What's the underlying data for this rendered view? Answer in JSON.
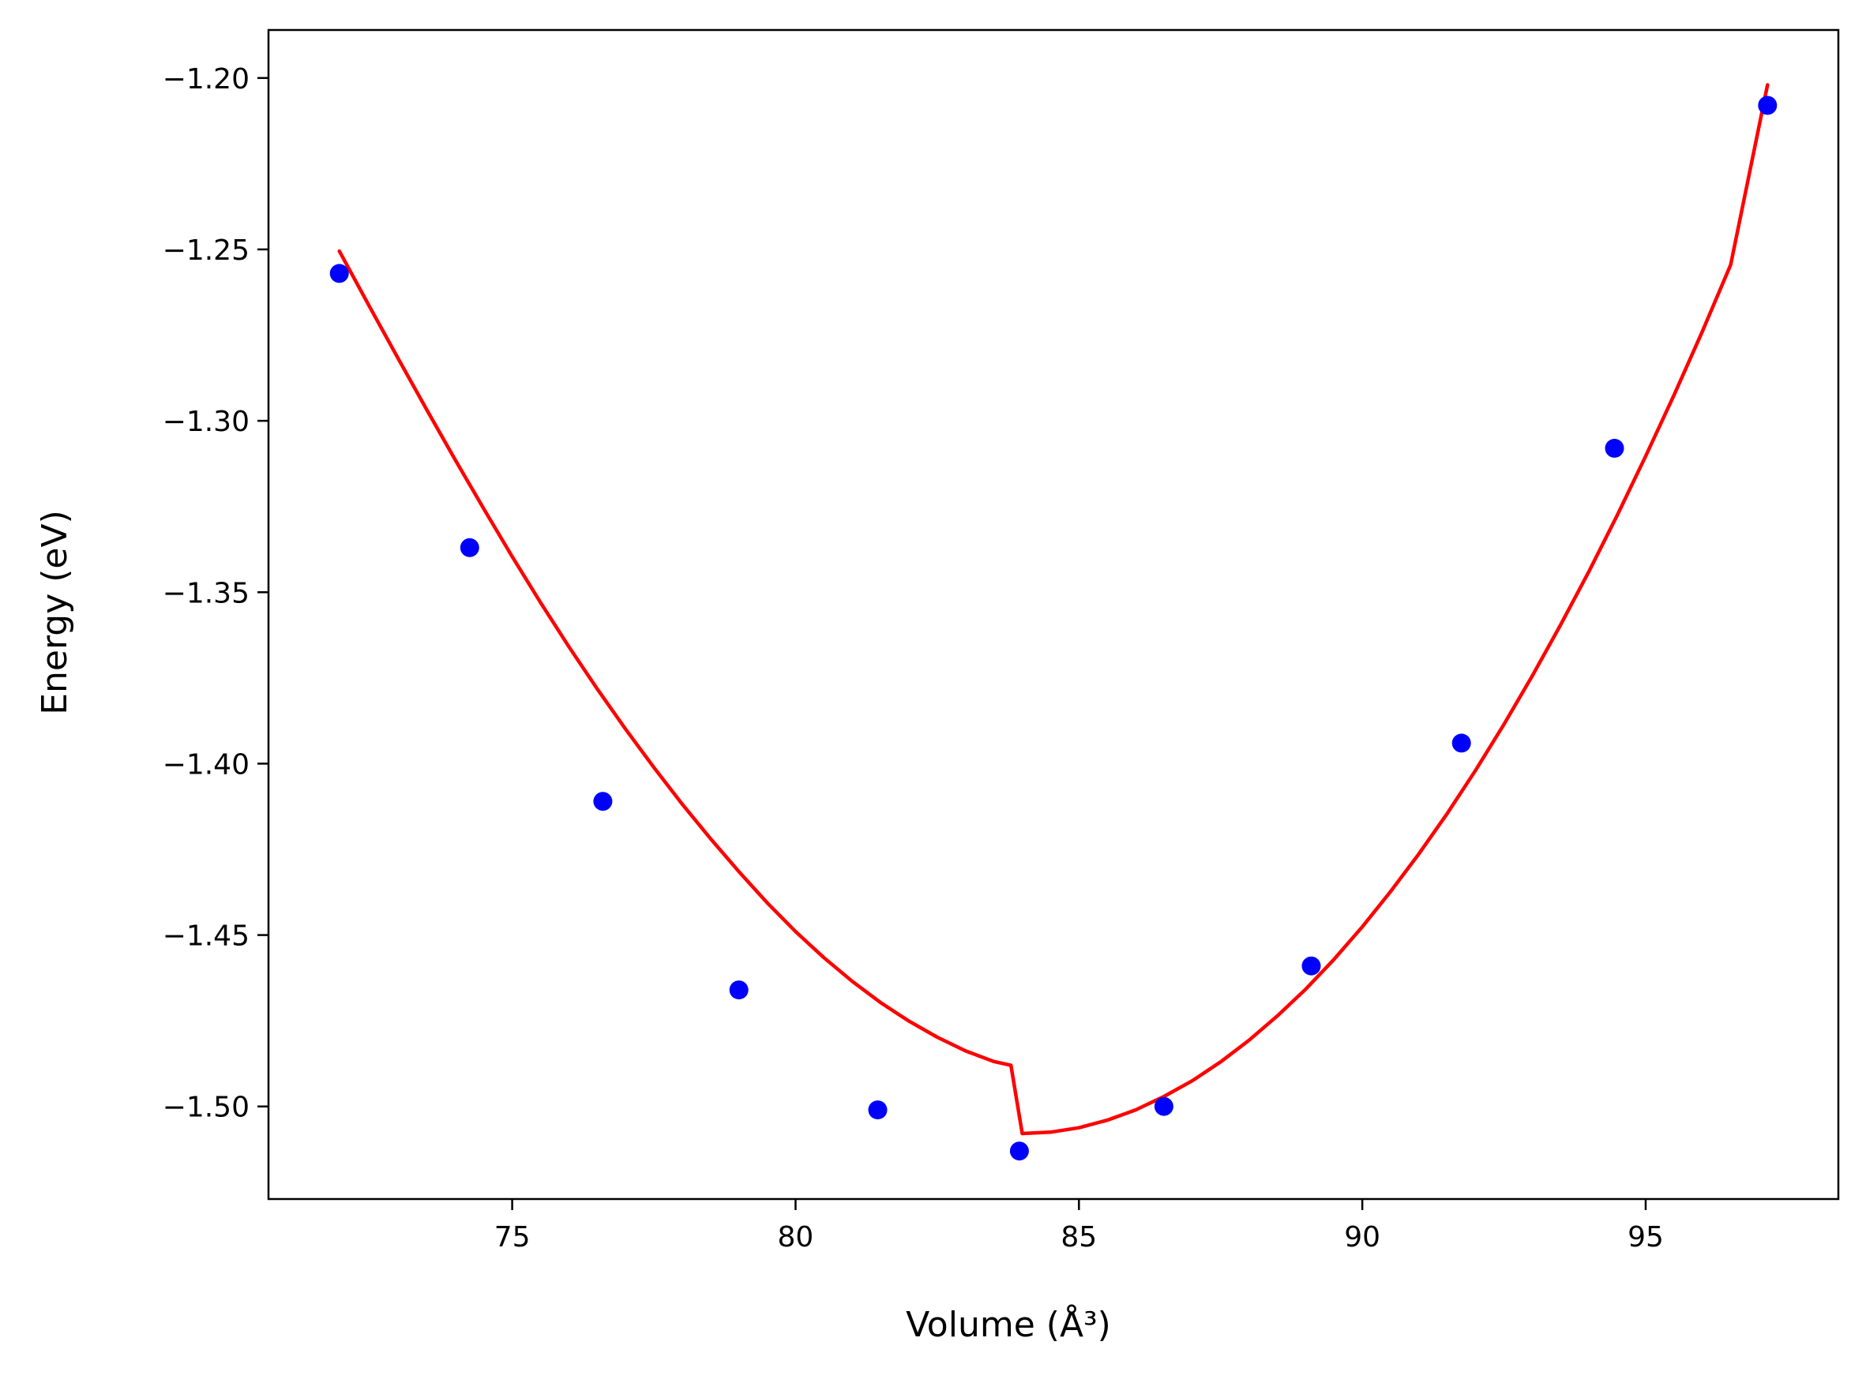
{
  "chart_data": {
    "type": "scatter",
    "title": "",
    "xlabel": "Volume",
    "xlabel_unit": "(Å³)",
    "ylabel": "Energy",
    "ylabel_unit": "(eV)",
    "xlim": [
      70.7,
      98.4
    ],
    "ylim": [
      -1.527,
      -1.186
    ],
    "xticks": [
      75,
      80,
      85,
      90,
      95
    ],
    "yticks": [
      -1.2,
      -1.25,
      -1.3,
      -1.35,
      -1.4,
      -1.45,
      -1.5
    ],
    "xtick_labels": [
      "75",
      "80",
      "85",
      "90",
      "95"
    ],
    "ytick_labels": [
      "−1.20",
      "−1.25",
      "−1.30",
      "−1.35",
      "−1.40",
      "−1.45",
      "−1.50"
    ],
    "grid": false,
    "series": [
      {
        "kind": "points",
        "color": "#0000ff",
        "x": [
          71.95,
          74.25,
          76.6,
          79.0,
          81.45,
          83.95,
          86.5,
          89.1,
          91.75,
          94.45,
          97.15
        ],
        "y": [
          -1.257,
          -1.337,
          -1.411,
          -1.466,
          -1.501,
          -1.513,
          -1.5,
          -1.459,
          -1.394,
          -1.308,
          -1.208
        ]
      },
      {
        "kind": "fit-line",
        "color": "#ff0000",
        "x": [
          71.95,
          72.5,
          73.0,
          73.5,
          74.0,
          74.5,
          75.0,
          75.5,
          76.0,
          76.5,
          77.0,
          77.5,
          78.0,
          78.5,
          79.0,
          79.5,
          80.0,
          80.5,
          81.0,
          81.5,
          82.0,
          82.5,
          83.0,
          83.5,
          83.8,
          84.0,
          84.5,
          85.0,
          85.5,
          86.0,
          86.5,
          87.0,
          87.5,
          88.0,
          88.5,
          89.0,
          89.5,
          90.0,
          90.5,
          91.0,
          91.5,
          92.0,
          92.5,
          93.0,
          93.5,
          94.0,
          94.5,
          95.0,
          95.5,
          96.0,
          96.5,
          97.15
        ],
        "y": [
          -1.2505,
          -1.2672,
          -1.2822,
          -1.297,
          -1.3115,
          -1.3257,
          -1.3396,
          -1.353,
          -1.3659,
          -1.3782,
          -1.3899,
          -1.4011,
          -1.4118,
          -1.4219,
          -1.4315,
          -1.4406,
          -1.449,
          -1.4566,
          -1.4635,
          -1.4697,
          -1.4751,
          -1.4798,
          -1.4838,
          -1.4869,
          -1.488,
          -1.5079,
          -1.5075,
          -1.5062,
          -1.504,
          -1.501,
          -1.4971,
          -1.4925,
          -1.487,
          -1.4807,
          -1.4736,
          -1.4658,
          -1.4571,
          -1.4476,
          -1.4373,
          -1.4263,
          -1.4145,
          -1.4019,
          -1.3885,
          -1.3744,
          -1.3595,
          -1.3439,
          -1.3275,
          -1.3103,
          -1.2925,
          -1.2739,
          -1.2545,
          -1.202
        ]
      }
    ]
  }
}
